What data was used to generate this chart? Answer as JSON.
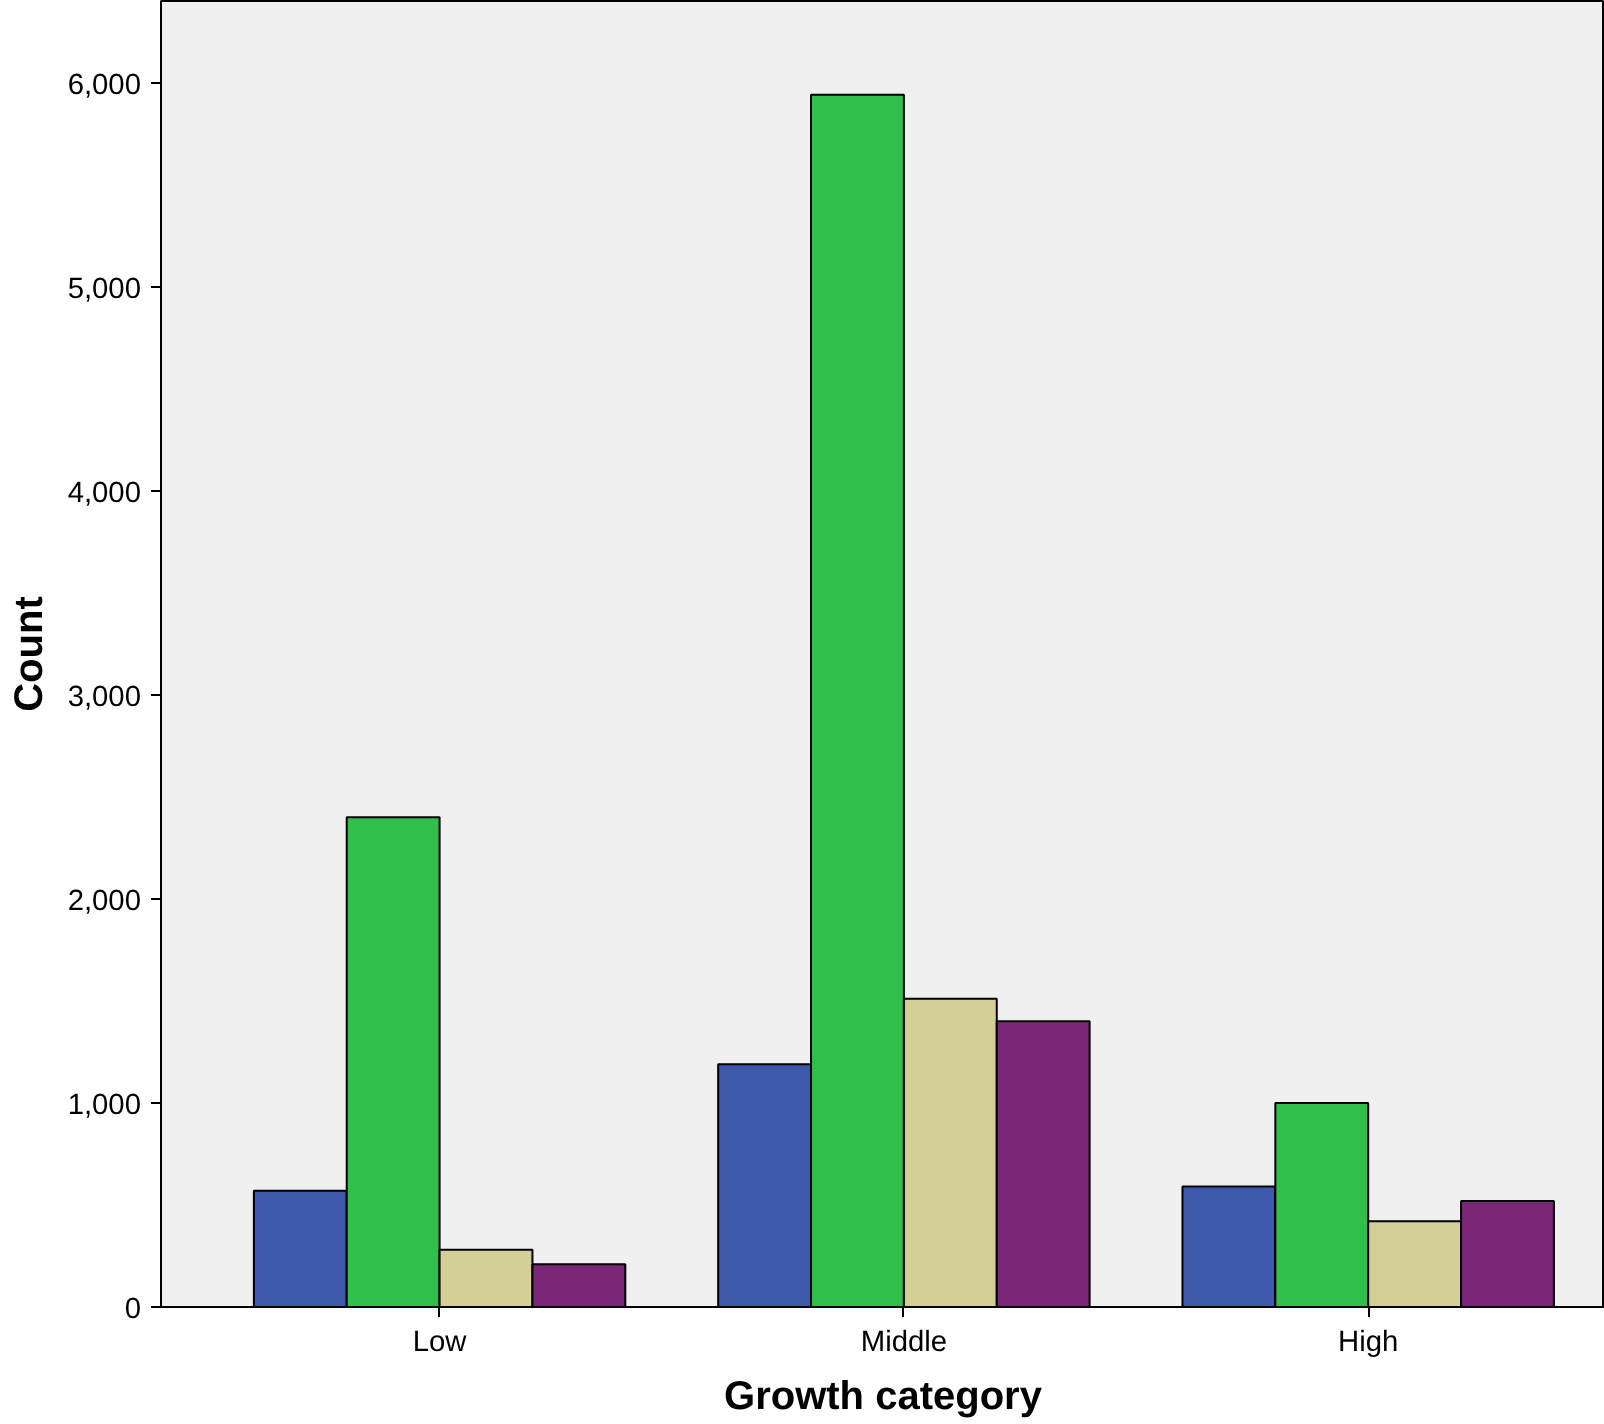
{
  "chart_data": {
    "type": "bar",
    "xlabel": "Growth category",
    "ylabel": "Count",
    "categories": [
      "Low",
      "Middle",
      "High"
    ],
    "series": [
      {
        "color": "#3e58ac",
        "values": [
          570,
          1190,
          590
        ]
      },
      {
        "color": "#30bf4b",
        "values": [
          2400,
          5940,
          1000
        ]
      },
      {
        "color": "#d4cf96",
        "values": [
          280,
          1510,
          420
        ]
      },
      {
        "color": "#7b2677",
        "values": [
          210,
          1400,
          520
        ]
      }
    ],
    "ylim": [
      0,
      6400
    ],
    "yticks": [
      {
        "value": 0,
        "label": "0"
      },
      {
        "value": 1000,
        "label": "1,000"
      },
      {
        "value": 2000,
        "label": "2,000"
      },
      {
        "value": 3000,
        "label": "3,000"
      },
      {
        "value": 4000,
        "label": "4,000"
      },
      {
        "value": 5000,
        "label": "5,000"
      },
      {
        "value": 6000,
        "label": "6,000"
      }
    ],
    "grid": false
  }
}
